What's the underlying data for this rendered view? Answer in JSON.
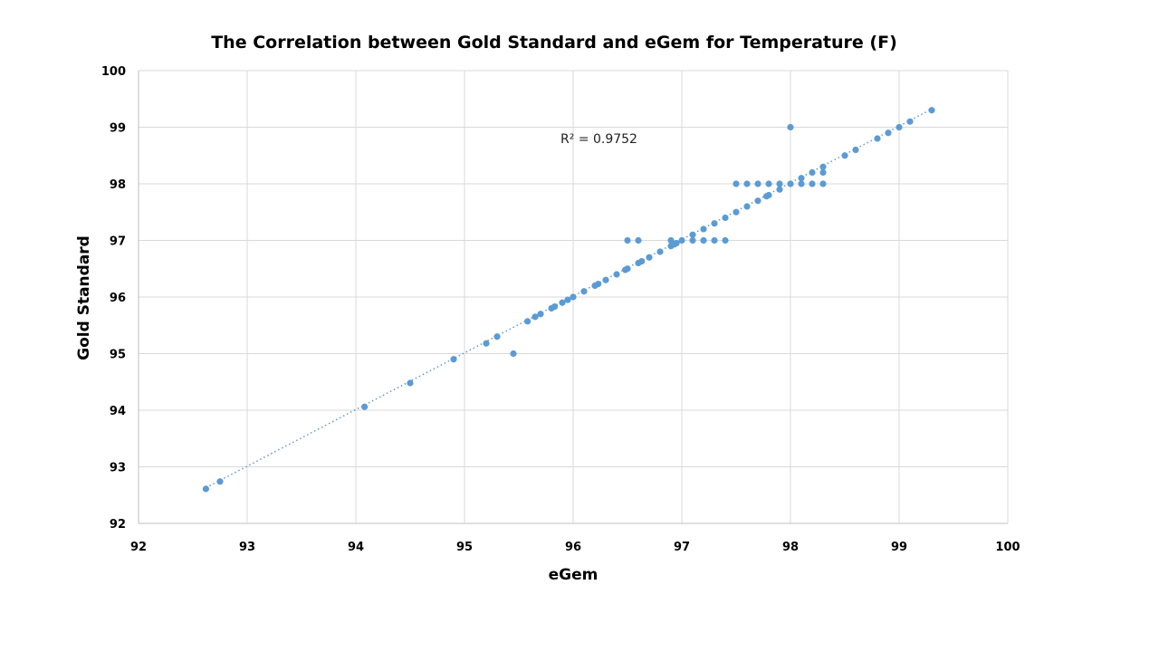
{
  "chart_data": {
    "type": "scatter",
    "title": "The Correlation between Gold Standard and  eGem for Temperature (F)",
    "xlabel": "eGem",
    "ylabel": "Gold Standard",
    "xlim": [
      92,
      100
    ],
    "ylim": [
      92,
      100
    ],
    "xticks": [
      "92",
      "93",
      "94",
      "95",
      "96",
      "97",
      "98",
      "99",
      "100"
    ],
    "yticks": [
      "92",
      "93",
      "94",
      "95",
      "96",
      "97",
      "98",
      "99",
      "100"
    ],
    "grid": true,
    "legend": "none",
    "trendline": {
      "type": "linear",
      "style": "dotted",
      "x_range": [
        92.62,
        99.3
      ],
      "y_range": [
        92.63,
        99.32
      ]
    },
    "annotation": "R² = 0.9752",
    "color": "#5b9bd5",
    "series": [
      {
        "name": "Temperature (F)",
        "points": [
          [
            92.62,
            92.61
          ],
          [
            92.75,
            92.74
          ],
          [
            94.08,
            94.06
          ],
          [
            94.5,
            94.48
          ],
          [
            94.9,
            94.9
          ],
          [
            95.2,
            95.18
          ],
          [
            95.3,
            95.3
          ],
          [
            95.45,
            95.0
          ],
          [
            95.58,
            95.57
          ],
          [
            95.65,
            95.65
          ],
          [
            95.7,
            95.7
          ],
          [
            95.8,
            95.8
          ],
          [
            95.83,
            95.83
          ],
          [
            95.9,
            95.9
          ],
          [
            95.95,
            95.95
          ],
          [
            96.0,
            96.0
          ],
          [
            96.1,
            96.1
          ],
          [
            96.2,
            96.2
          ],
          [
            96.23,
            96.23
          ],
          [
            96.3,
            96.3
          ],
          [
            96.4,
            96.4
          ],
          [
            96.48,
            96.48
          ],
          [
            96.5,
            96.5
          ],
          [
            96.6,
            96.6
          ],
          [
            96.63,
            96.63
          ],
          [
            96.7,
            96.7
          ],
          [
            96.8,
            96.8
          ],
          [
            96.9,
            96.9
          ],
          [
            96.93,
            96.93
          ],
          [
            96.95,
            96.95
          ],
          [
            97.0,
            97.0
          ],
          [
            97.1,
            97.1
          ],
          [
            97.2,
            97.2
          ],
          [
            97.3,
            97.3
          ],
          [
            97.4,
            97.4
          ],
          [
            97.5,
            97.5
          ],
          [
            97.6,
            97.6
          ],
          [
            97.7,
            97.7
          ],
          [
            97.78,
            97.78
          ],
          [
            97.8,
            97.8
          ],
          [
            97.9,
            97.9
          ],
          [
            98.0,
            98.0
          ],
          [
            98.1,
            98.1
          ],
          [
            98.2,
            98.2
          ],
          [
            98.3,
            98.3
          ],
          [
            98.5,
            98.5
          ],
          [
            98.6,
            98.6
          ],
          [
            98.8,
            98.8
          ],
          [
            98.9,
            98.9
          ],
          [
            99.0,
            99.0
          ],
          [
            99.1,
            99.1
          ],
          [
            99.3,
            99.3
          ],
          [
            96.5,
            97.0
          ],
          [
            96.6,
            97.0
          ],
          [
            96.9,
            97.0
          ],
          [
            97.1,
            97.0
          ],
          [
            97.2,
            97.0
          ],
          [
            97.3,
            97.0
          ],
          [
            97.4,
            97.0
          ],
          [
            97.5,
            98.0
          ],
          [
            97.6,
            98.0
          ],
          [
            97.7,
            98.0
          ],
          [
            97.8,
            98.0
          ],
          [
            97.9,
            98.0
          ],
          [
            98.1,
            98.0
          ],
          [
            98.2,
            98.0
          ],
          [
            98.3,
            98.0
          ],
          [
            98.3,
            98.2
          ],
          [
            98.0,
            99.0
          ]
        ]
      }
    ]
  }
}
